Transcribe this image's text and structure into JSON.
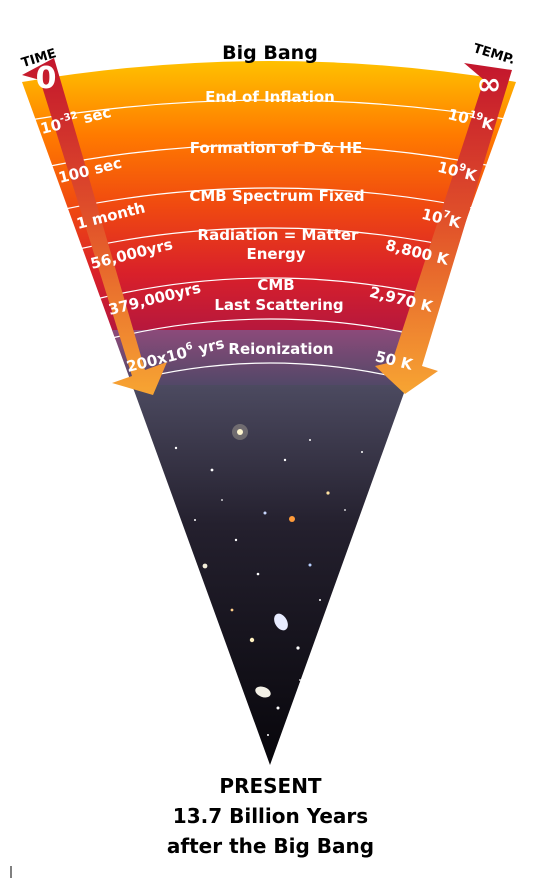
{
  "title": "Big Bang",
  "time_header": "TIME",
  "temp_header": "TEMP.",
  "time_start": "0",
  "temp_start": "∞",
  "eras": [
    {
      "label": "End of Inflation",
      "time": "10",
      "time_sup": "-32",
      "time_unit": " sec",
      "temp": "10",
      "temp_sup": "19",
      "temp_unit": "K"
    },
    {
      "label": "Formation of D & HE",
      "time": "100 sec",
      "time_sup": "",
      "time_unit": "",
      "temp": "10",
      "temp_sup": "9",
      "temp_unit": "K"
    },
    {
      "label": "CMB Spectrum Fixed",
      "time": "1 month",
      "time_sup": "",
      "time_unit": "",
      "temp": "10",
      "temp_sup": "7",
      "temp_unit": "K"
    },
    {
      "label": "Radiation = Matter",
      "label2": "Energy",
      "time": "56,000",
      "time_sup": "",
      "time_unit": "yrs",
      "temp": "8,800 K",
      "temp_sup": "",
      "temp_unit": ""
    },
    {
      "label": "CMB",
      "label2": "Last Scattering",
      "time": "379,000",
      "time_sup": "",
      "time_unit": "yrs",
      "temp": "2,970 K",
      "temp_sup": "",
      "temp_unit": ""
    },
    {
      "label": "Reionization",
      "time": "200x10",
      "time_sup": "6",
      "time_unit": " yrs",
      "temp": "50 K",
      "temp_sup": "",
      "temp_unit": ""
    }
  ],
  "present": {
    "line1": "PRESENT",
    "line2": "13.7 Billion Years",
    "line3": "after the Big Bang"
  }
}
